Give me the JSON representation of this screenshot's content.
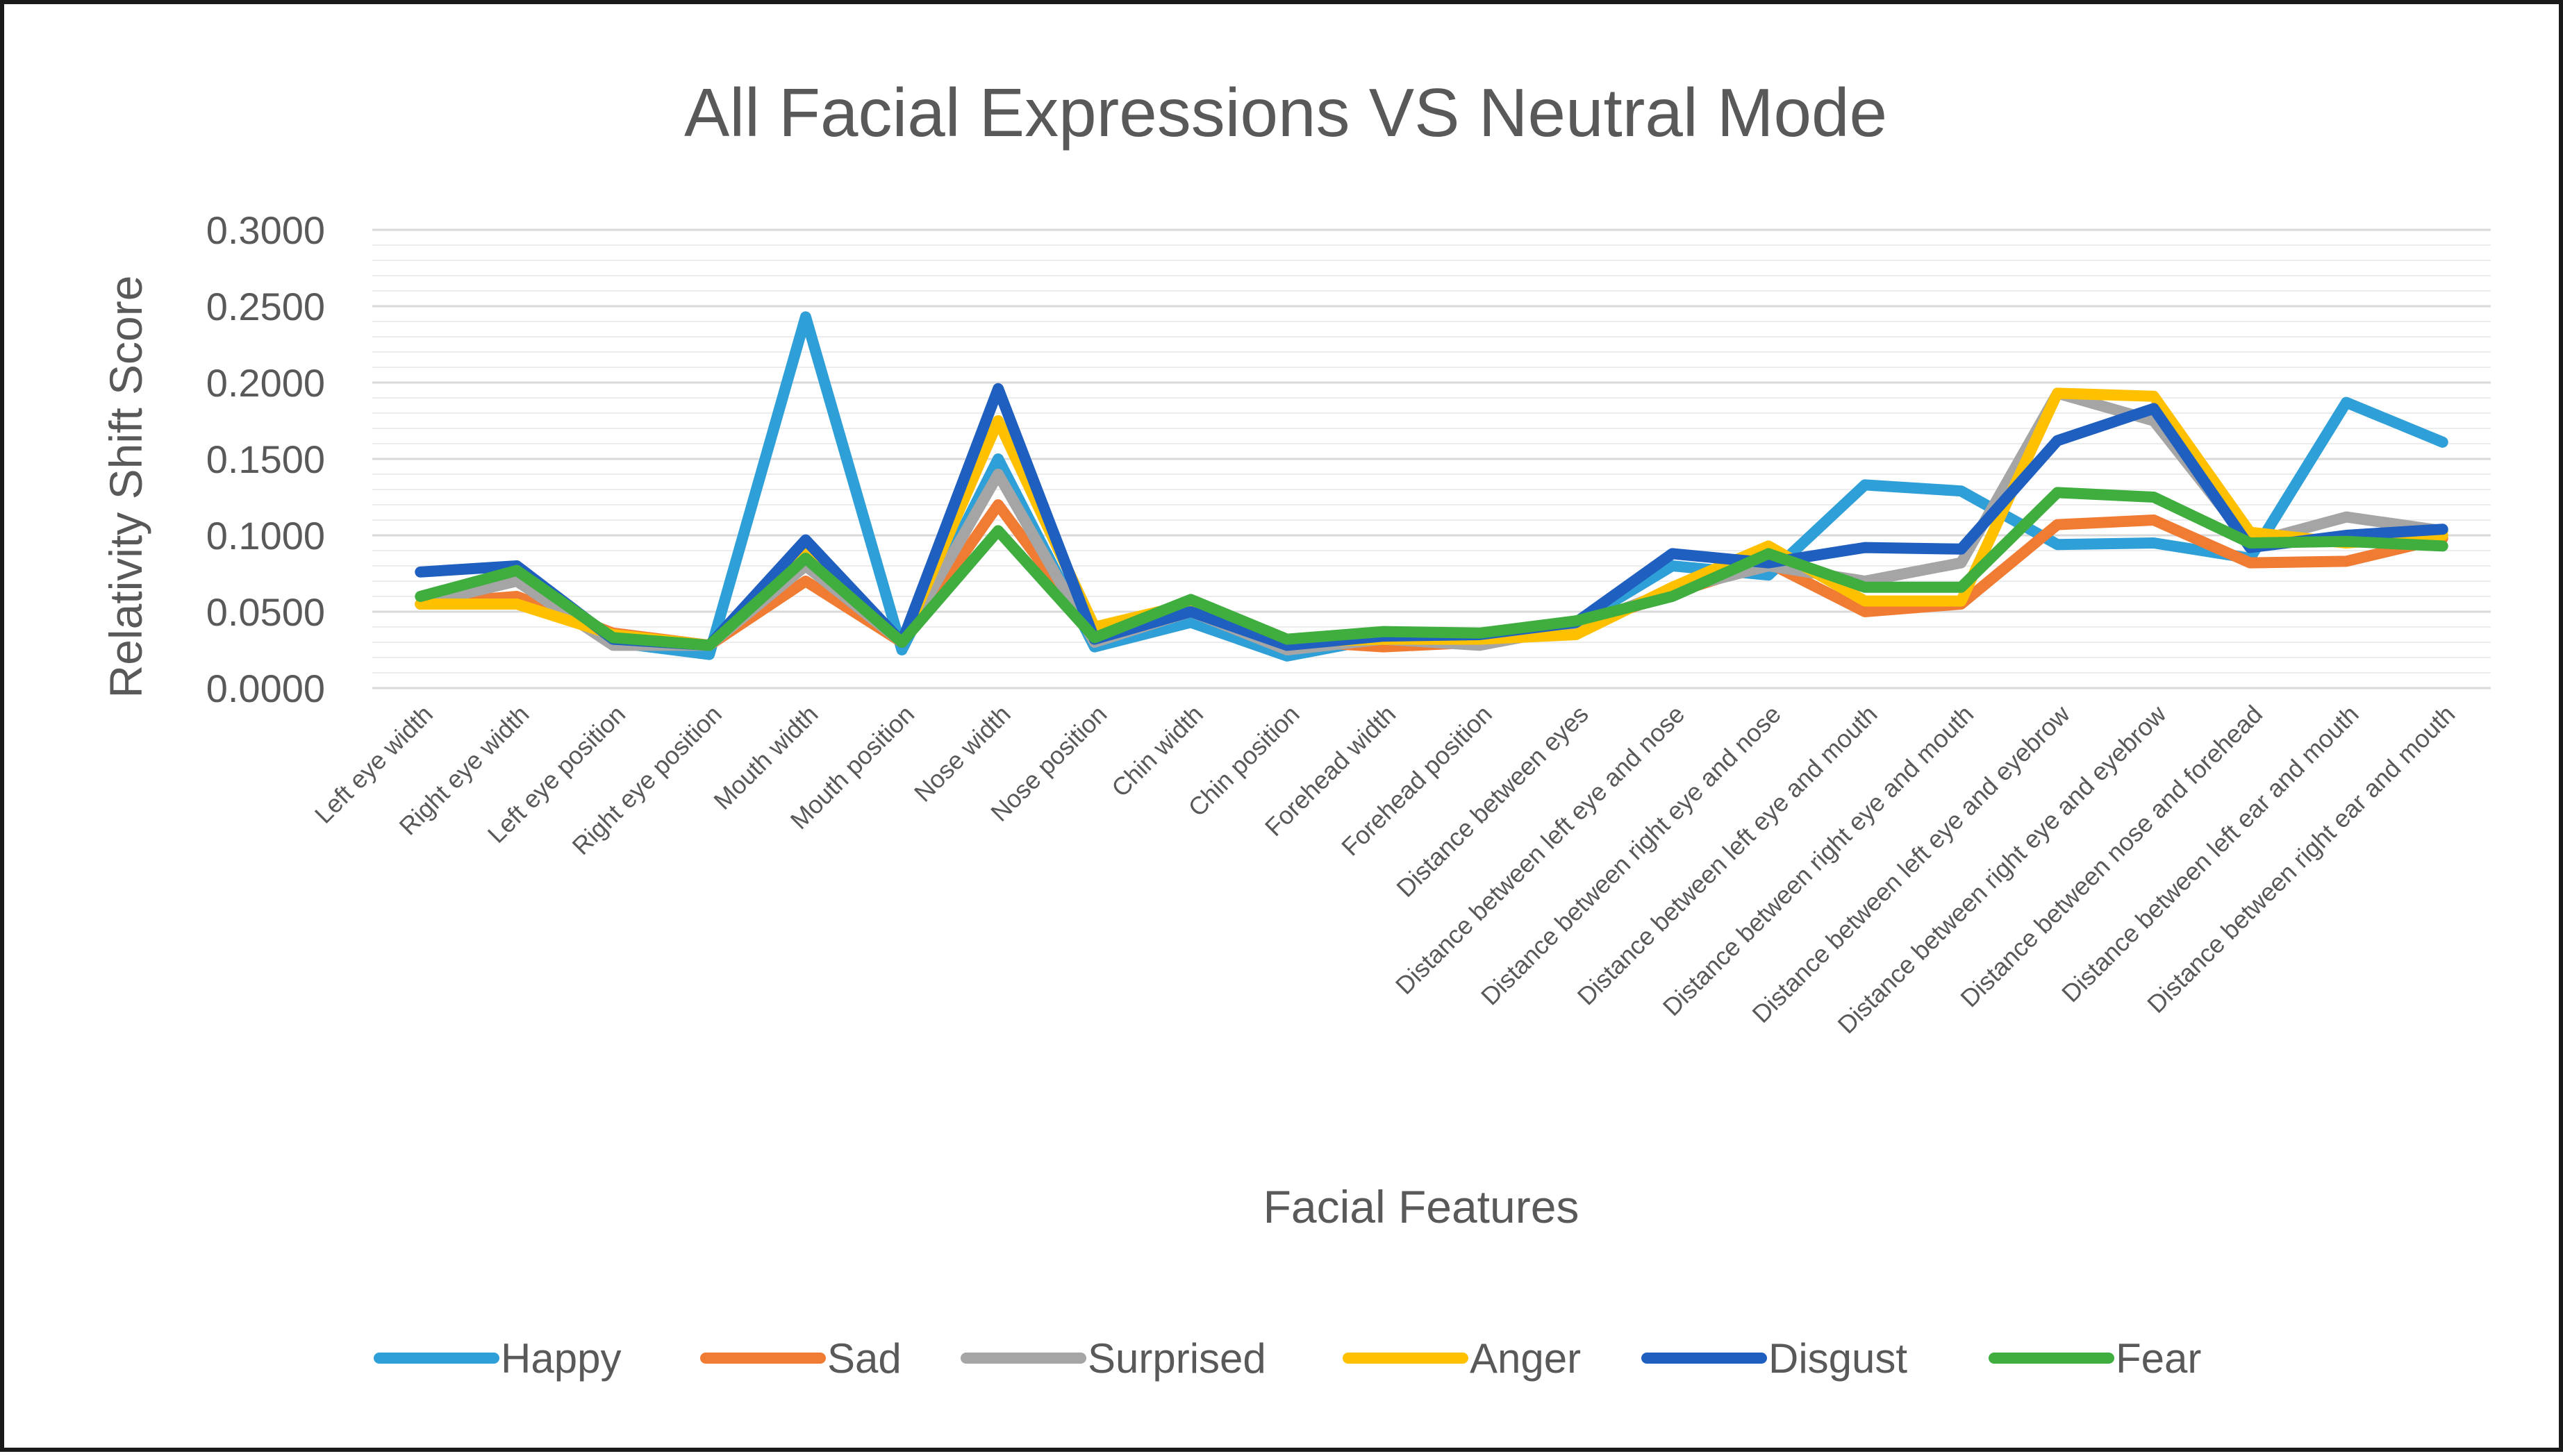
{
  "chart_data": {
    "type": "line",
    "title": "All Facial Expressions VS Neutral Mode",
    "xlabel": "Facial Features",
    "ylabel": "Relativity Shift Score",
    "ylim": [
      0,
      0.3
    ],
    "yticks": [
      "0.0000",
      "0.0500",
      "0.1000",
      "0.1500",
      "0.2000",
      "0.2500",
      "0.3000"
    ],
    "grid": true,
    "legend": "bottom",
    "categories": [
      "Left eye width",
      "Right eye width",
      "Left eye position",
      "Right eye position",
      "Mouth width",
      "Mouth position",
      "Nose width",
      "Nose position",
      "Chin width",
      "Chin position",
      "Forehead width",
      "Forehead position",
      "Distance between eyes",
      "Distance between left eye and nose",
      "Distance between right eye and nose",
      "Distance between left eye and mouth",
      "Distance between right eye and mouth",
      "Distance between left eye and eyebrow",
      "Distance between right eye and eyebrow",
      "Distance between nose and forehead",
      "Distance between left ear and mouth",
      "Distance between right ear and mouth"
    ],
    "series": [
      {
        "name": "Happy",
        "color": "#2f9fd8",
        "values": [
          0.055,
          0.077,
          0.03,
          0.022,
          0.243,
          0.025,
          0.15,
          0.027,
          0.043,
          0.021,
          0.033,
          0.034,
          0.042,
          0.08,
          0.074,
          0.133,
          0.129,
          0.094,
          0.095,
          0.085,
          0.187,
          0.161
        ]
      },
      {
        "name": "Sad",
        "color": "#f07c33",
        "values": [
          0.055,
          0.06,
          0.036,
          0.028,
          0.07,
          0.03,
          0.12,
          0.035,
          0.053,
          0.031,
          0.027,
          0.03,
          0.04,
          0.062,
          0.082,
          0.05,
          0.055,
          0.107,
          0.11,
          0.082,
          0.083,
          0.098
        ]
      },
      {
        "name": "Surprised",
        "color": "#a5a5a5",
        "values": [
          0.055,
          0.07,
          0.028,
          0.028,
          0.08,
          0.03,
          0.14,
          0.03,
          0.05,
          0.025,
          0.032,
          0.028,
          0.04,
          0.064,
          0.08,
          0.07,
          0.082,
          0.193,
          0.175,
          0.095,
          0.112,
          0.103
        ]
      },
      {
        "name": "Anger",
        "color": "#ffc000",
        "values": [
          0.055,
          0.055,
          0.035,
          0.028,
          0.09,
          0.03,
          0.175,
          0.04,
          0.055,
          0.03,
          0.032,
          0.032,
          0.035,
          0.066,
          0.093,
          0.057,
          0.057,
          0.193,
          0.191,
          0.102,
          0.095,
          0.1
        ]
      },
      {
        "name": "Disgust",
        "color": "#1f5fbf",
        "values": [
          0.076,
          0.08,
          0.032,
          0.028,
          0.097,
          0.03,
          0.196,
          0.032,
          0.05,
          0.028,
          0.034,
          0.035,
          0.043,
          0.088,
          0.082,
          0.092,
          0.091,
          0.162,
          0.183,
          0.092,
          0.1,
          0.104
        ]
      },
      {
        "name": "Fear",
        "color": "#3fae3f",
        "values": [
          0.06,
          0.077,
          0.033,
          0.028,
          0.085,
          0.03,
          0.103,
          0.033,
          0.058,
          0.032,
          0.037,
          0.036,
          0.044,
          0.06,
          0.088,
          0.066,
          0.066,
          0.128,
          0.125,
          0.095,
          0.096,
          0.093
        ]
      }
    ]
  }
}
